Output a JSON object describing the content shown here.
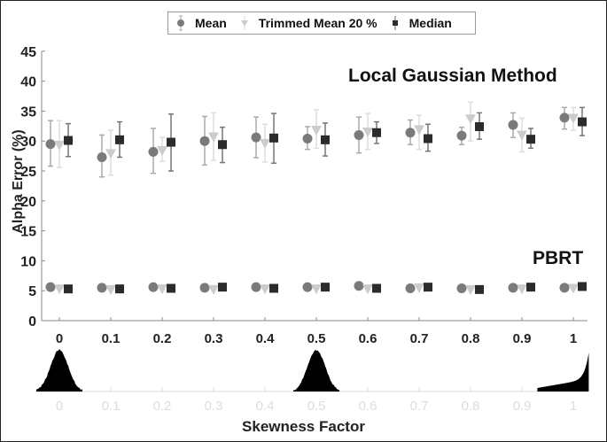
{
  "legend": {
    "items": [
      {
        "label": "Mean",
        "marker": "circle",
        "color": "#7a7a7a"
      },
      {
        "label": "Trimmed Mean 20 %",
        "marker": "triangle-down",
        "color": "#cccccc"
      },
      {
        "label": "Median",
        "marker": "square",
        "color": "#2b2b2b"
      }
    ]
  },
  "annotations": {
    "upper": "Local Gaussian Method",
    "lower": "PBRT"
  },
  "axes": {
    "ylabel": "Alpha Error (%)",
    "xlabel": "Skewness Factor",
    "yticks": [
      "0",
      "5",
      "10",
      "15",
      "20",
      "25",
      "30",
      "35",
      "40",
      "45"
    ],
    "xticks": [
      "0",
      "0.1",
      "0.2",
      "0.3",
      "0.4",
      "0.5",
      "0.6",
      "0.7",
      "0.8",
      "0.9",
      "1"
    ]
  },
  "chart_data": {
    "type": "scatter",
    "title": "",
    "xlabel": "Skewness Factor",
    "ylabel": "Alpha Error (%)",
    "ylim": [
      0,
      45
    ],
    "x": [
      0,
      0.1,
      0.2,
      0.3,
      0.4,
      0.5,
      0.6,
      0.7,
      0.8,
      0.9,
      1
    ],
    "grid": false,
    "legend_position": "top",
    "groups": [
      {
        "name": "Local Gaussian Method",
        "series": [
          {
            "name": "Mean",
            "values": [
              29.5,
              27.3,
              28.2,
              30.0,
              30.6,
              30.4,
              31.0,
              31.4,
              30.9,
              32.7,
              33.9
            ],
            "err_low": [
              25.8,
              24.0,
              24.6,
              26.0,
              27.2,
              28.6,
              28.0,
              29.4,
              29.4,
              30.6,
              32.0
            ],
            "err_high": [
              33.4,
              31.0,
              32.1,
              34.1,
              34.0,
              32.4,
              34.0,
              33.5,
              32.3,
              34.7,
              35.6
            ]
          },
          {
            "name": "Trimmed Mean 20 %",
            "values": [
              29.3,
              27.9,
              28.4,
              30.7,
              29.6,
              31.8,
              31.5,
              31.9,
              33.7,
              31.0,
              33.8
            ],
            "err_low": [
              25.6,
              24.3,
              26.6,
              26.8,
              26.5,
              28.8,
              28.6,
              28.6,
              30.0,
              28.2,
              31.8
            ],
            "err_high": [
              33.4,
              31.8,
              30.6,
              34.7,
              32.8,
              35.2,
              34.6,
              34.3,
              36.5,
              33.8,
              35.6
            ]
          },
          {
            "name": "Median",
            "values": [
              30.1,
              30.2,
              29.8,
              29.4,
              30.5,
              30.2,
              31.4,
              30.4,
              32.4,
              30.3,
              33.2
            ],
            "err_low": [
              27.4,
              27.3,
              25.0,
              26.4,
              26.3,
              27.5,
              29.6,
              28.3,
              30.3,
              28.8,
              30.9
            ],
            "err_high": [
              32.9,
              33.2,
              34.5,
              32.3,
              34.6,
              33.0,
              33.2,
              32.8,
              34.7,
              32.1,
              35.6
            ]
          }
        ]
      },
      {
        "name": "PBRT",
        "series": [
          {
            "name": "Mean",
            "values": [
              5.6,
              5.5,
              5.6,
              5.5,
              5.6,
              5.6,
              5.8,
              5.4,
              5.4,
              5.5,
              5.5
            ]
          },
          {
            "name": "Trimmed Mean 20 %",
            "values": [
              5.3,
              5.2,
              5.3,
              5.2,
              5.3,
              5.3,
              5.3,
              5.5,
              5.2,
              5.3,
              5.4
            ]
          },
          {
            "name": "Median",
            "values": [
              5.3,
              5.3,
              5.4,
              5.6,
              5.4,
              5.6,
              5.4,
              5.6,
              5.2,
              5.6,
              5.7
            ]
          }
        ]
      }
    ],
    "histograms": {
      "description": "Distribution shapes for skewness factors",
      "peaks_at": [
        0,
        0.5,
        1
      ],
      "shape": [
        "symmetric",
        "symmetric",
        "right-skewed toward 1"
      ]
    }
  }
}
